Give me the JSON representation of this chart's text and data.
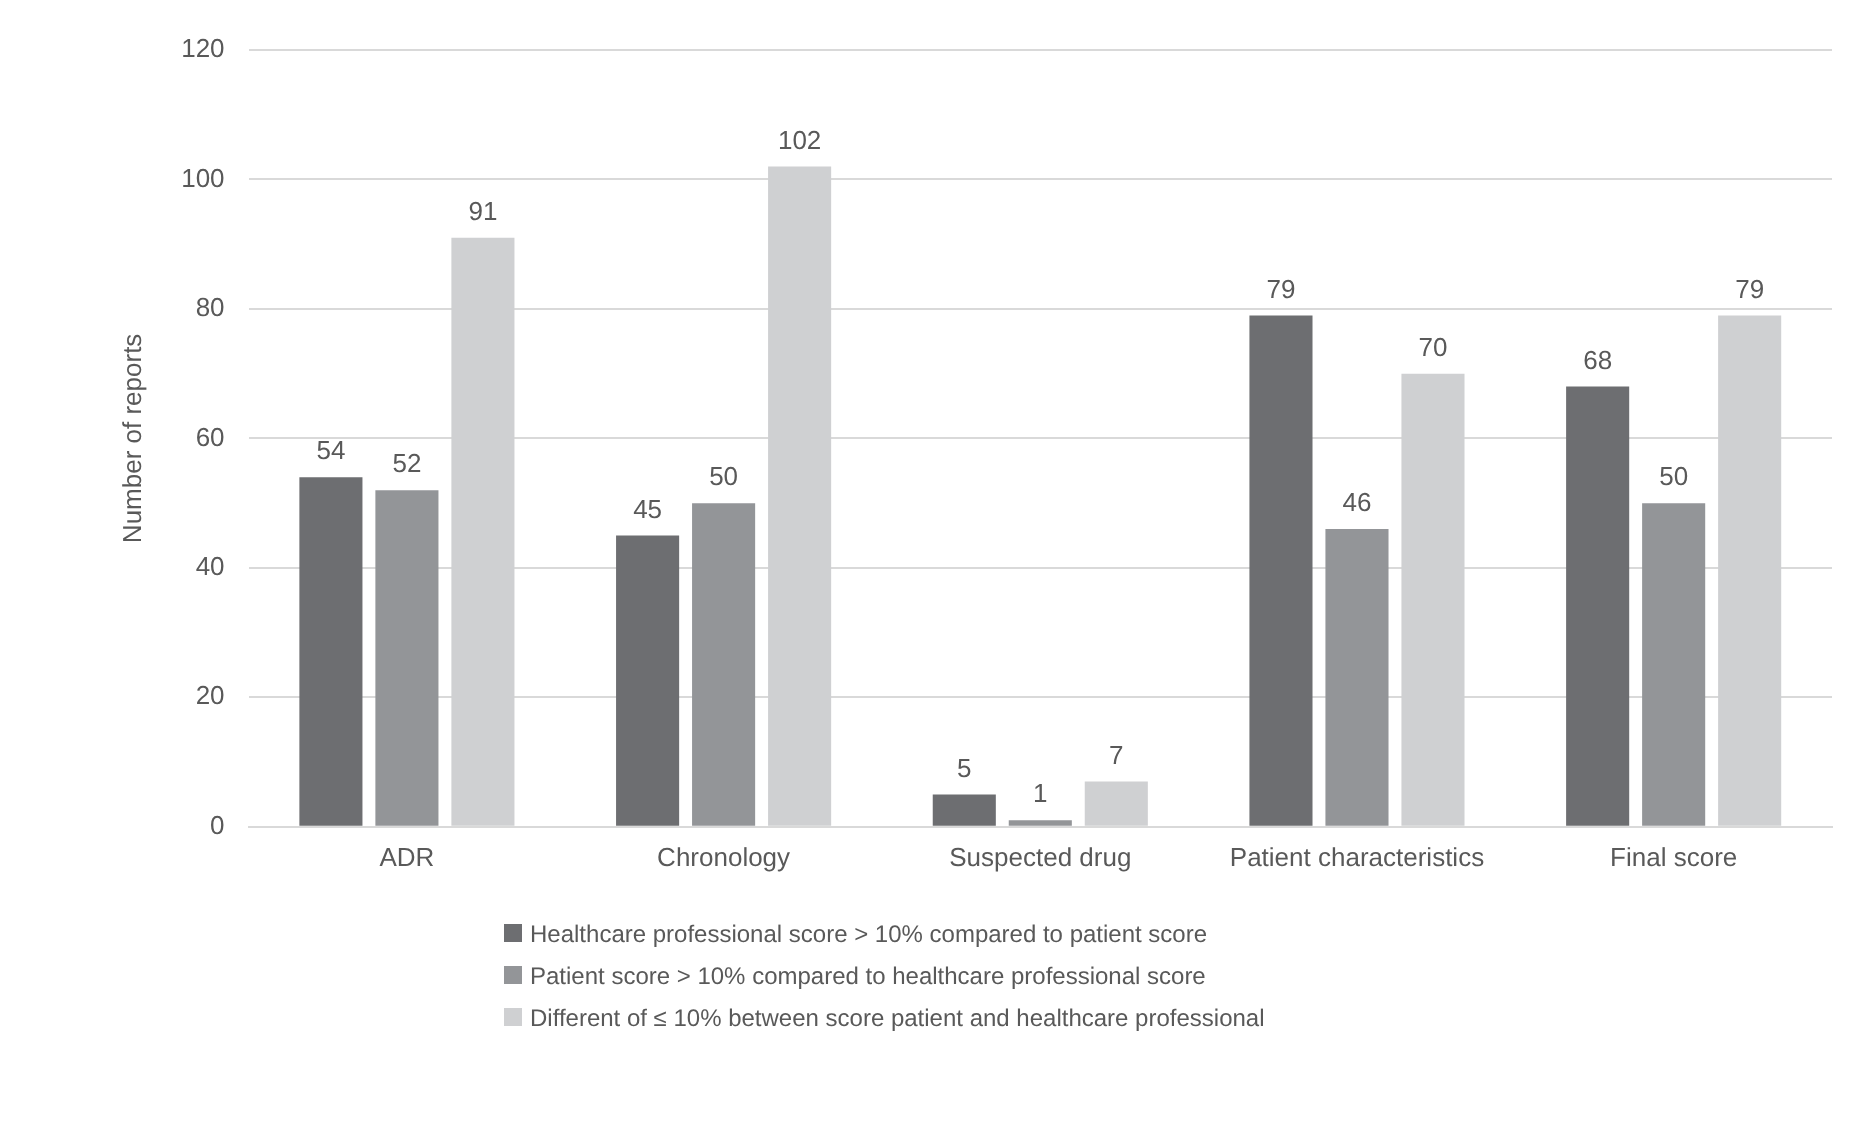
{
  "chart_data": {
    "type": "bar",
    "ylabel": "Number of reports",
    "categories": [
      "ADR",
      "Chronology",
      "Suspected drug",
      "Patient characteristics",
      "Final score"
    ],
    "series": [
      {
        "name": "Healthcare professional score > 10% compared to patient score",
        "color": "#6d6e71",
        "values": [
          54,
          45,
          5,
          79,
          68
        ]
      },
      {
        "name": "Patient score > 10% compared to healthcare professional score",
        "color": "#939598",
        "values": [
          52,
          50,
          1,
          46,
          50
        ]
      },
      {
        "name": "Different of ≤ 10% between score patient and healthcare professional",
        "color": "#cfd0d2",
        "values": [
          91,
          102,
          7,
          70,
          79
        ]
      }
    ],
    "ylim": [
      0,
      120
    ],
    "yticks": [
      0,
      20,
      40,
      60,
      80,
      100,
      120
    ],
    "grid": "y",
    "legend": "bottom",
    "data_labels": true
  }
}
